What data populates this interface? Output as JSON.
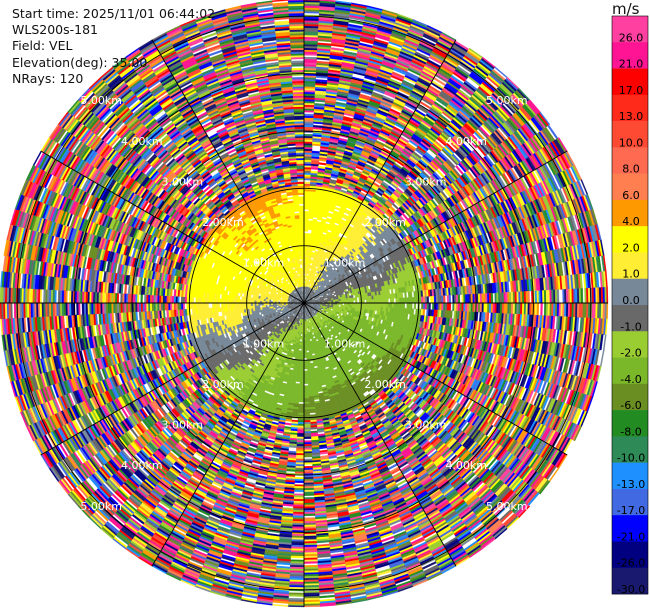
{
  "header": {
    "start_time": "Start time: 2025/11/01 06:44:02",
    "instrument": "WLS200s-181",
    "field": "Field: VEL",
    "elevation": "Elevation(deg): 35.00",
    "nrays": "NRays: 120"
  },
  "chart_data": {
    "type": "heatmap",
    "projection": "polar-ppi",
    "field": "VEL",
    "unit": "m/s",
    "nrays": 120,
    "max_range_km": 5.3,
    "valid_range_km": 2.05,
    "range_rings_km": [
      1.0,
      2.0,
      3.0,
      4.0,
      5.0
    ],
    "ring_labels": [
      "1.00km",
      "2.00km",
      "3.00km",
      "4.00km",
      "5.00km"
    ],
    "colorbar": {
      "unit": "m/s",
      "ticks": [
        "26.0",
        "21.0",
        "17.0",
        "13.0",
        "10.0",
        "8.0",
        "6.0",
        "4.0",
        "2.0",
        "1.0",
        "0.0",
        "-1.0",
        "-2.0",
        "-4.0",
        "-6.0",
        "-8.0",
        "-10.0",
        "-13.0",
        "-17.0",
        "-21.0",
        "-26.0",
        "-30.0"
      ],
      "bins": [
        {
          "min": 26,
          "max": 30,
          "color": "#ff40a0"
        },
        {
          "min": 21,
          "max": 26,
          "color": "#ff1493"
        },
        {
          "min": 17,
          "max": 21,
          "color": "#ff0000"
        },
        {
          "min": 13,
          "max": 17,
          "color": "#ff2a1a"
        },
        {
          "min": 10,
          "max": 13,
          "color": "#ff4a33"
        },
        {
          "min": 8,
          "max": 10,
          "color": "#ff6a50"
        },
        {
          "min": 6,
          "max": 8,
          "color": "#ff7f50"
        },
        {
          "min": 4,
          "max": 6,
          "color": "#ff9900"
        },
        {
          "min": 2,
          "max": 4,
          "color": "#ffff00"
        },
        {
          "min": 1,
          "max": 2,
          "color": "#ffee33"
        },
        {
          "min": 0,
          "max": 1,
          "color": "#778899"
        },
        {
          "min": -1,
          "max": 0,
          "color": "#696969"
        },
        {
          "min": -2,
          "max": -1,
          "color": "#9acd32"
        },
        {
          "min": -4,
          "max": -2,
          "color": "#7ab82a"
        },
        {
          "min": -6,
          "max": -4,
          "color": "#6b8e23"
        },
        {
          "min": -8,
          "max": -6,
          "color": "#228b22"
        },
        {
          "min": -10,
          "max": -8,
          "color": "#2e8b57"
        },
        {
          "min": -13,
          "max": -10,
          "color": "#1e90ff"
        },
        {
          "min": -17,
          "max": -13,
          "color": "#4169e1"
        },
        {
          "min": -21,
          "max": -17,
          "color": "#0000ff"
        },
        {
          "min": -26,
          "max": -21,
          "color": "#000080"
        },
        {
          "min": -30,
          "max": -26,
          "color": "#191970"
        }
      ]
    },
    "noise_palette": [
      "#ff1493",
      "#ff40a0",
      "#ff0000",
      "#ff4a33",
      "#ff9900",
      "#ffff00",
      "#ffee33",
      "#9acd32",
      "#6b8e23",
      "#228b22",
      "#2e8b57",
      "#1e90ff",
      "#4169e1",
      "#0000ff",
      "#000080",
      "#191970",
      "#778899",
      "#696969",
      "#ff7f50"
    ]
  }
}
